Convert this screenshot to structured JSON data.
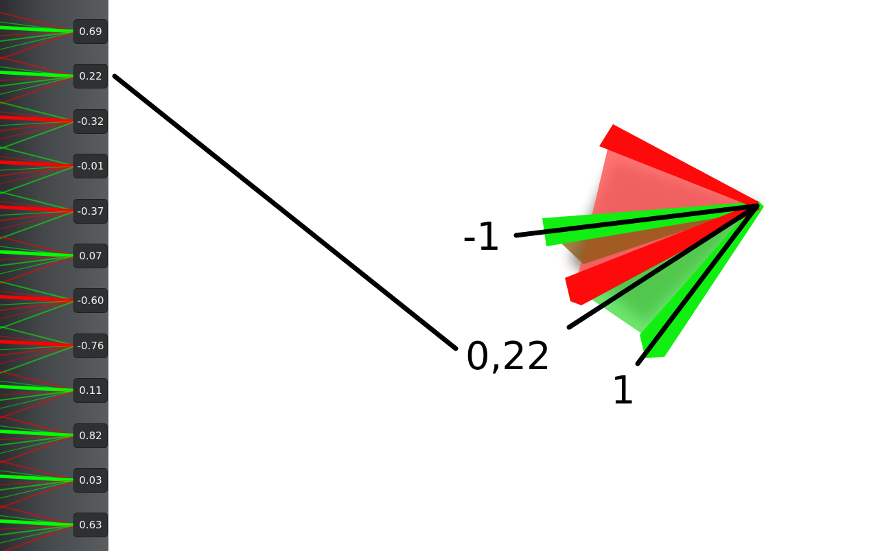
{
  "neuron_strip": {
    "node_values": [
      "0.69",
      "0.22",
      "-0.32",
      "-0.01",
      "-0.37",
      "0.07",
      "-0.60",
      "-0.76",
      "0.11",
      "0.82",
      "0.03",
      "0.63"
    ]
  },
  "weight_diagram": {
    "labels": {
      "negative": "-1",
      "highlighted": "0,22",
      "positive": "1"
    }
  },
  "colors": {
    "positive_weight": "#00ff00",
    "negative_weight": "#ff0000",
    "connector": "#000000",
    "badge_background": "#2e3032"
  }
}
